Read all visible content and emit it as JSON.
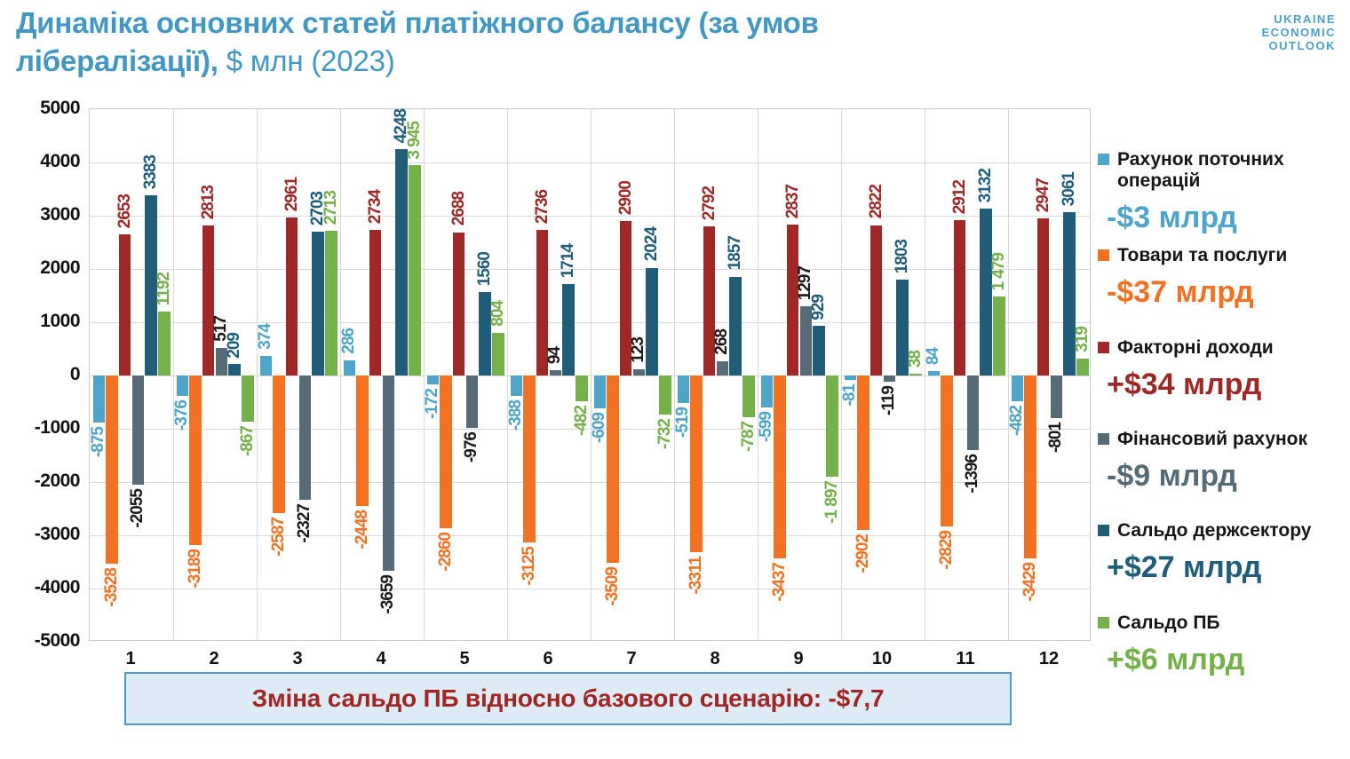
{
  "title": {
    "line1_bold": "Динаміка основних статей платіжного балансу (за умов",
    "line2_bold": "лібералізації),",
    "line2_light": " $ млн (2023)"
  },
  "logo": {
    "line1": "UKRAINE",
    "line2": "ECONOMIC",
    "line3": "OUTLOOK"
  },
  "banner": {
    "text": "Зміна сальдо ПБ відносно базового сценарію: -$7,7"
  },
  "colors": {
    "accent_blue": "#4298c2",
    "grid": "#d9d9d9",
    "axis_text": "#111111",
    "banner_bg": "#ddecf4",
    "banner_border": "#4d9cc4",
    "banner_text": "#a12525"
  },
  "chart_data": {
    "type": "bar",
    "title": "Динаміка основних статей платіжного балансу (за умов лібералізації), $ млн (2023)",
    "unit": "$ млн",
    "year": "2023",
    "categories": [
      "1",
      "2",
      "3",
      "4",
      "5",
      "6",
      "7",
      "8",
      "9",
      "10",
      "11",
      "12"
    ],
    "y_axis": {
      "min": -5000,
      "max": 5000,
      "step": 1000
    },
    "grid": true,
    "legend_position": "right",
    "series": [
      {
        "key": "current-account",
        "name": "Рахунок поточних операцій",
        "legend_value": "-$3 млрд",
        "color": "#4fa5c9",
        "label_color": "#4fa5c9",
        "values": [
          -875,
          -376,
          374,
          286,
          -172,
          -388,
          -609,
          -519,
          -599,
          -81,
          84,
          -482
        ],
        "labels": [
          "-875",
          "-376",
          "374",
          "286",
          "-172",
          "-388",
          "-609",
          "-519",
          "-599",
          "-81",
          "84",
          "-482"
        ]
      },
      {
        "key": "goods-services",
        "name": "Товари та послуги",
        "legend_value": "-$37 млрд",
        "color": "#f37122",
        "label_color": "#f37122",
        "values": [
          -3528,
          -3189,
          -2587,
          -2448,
          -2860,
          -3125,
          -3509,
          -3311,
          -3437,
          -2902,
          -2829,
          -3429
        ],
        "labels": [
          "-3528",
          "-3189",
          "-2587",
          "-2448",
          "-2860",
          "-3125",
          "-3509",
          "-3311",
          "-3437",
          "-2902",
          "-2829",
          "-3429"
        ]
      },
      {
        "key": "factor-income",
        "name": "Факторні доходи",
        "legend_value": "+$34 млрд",
        "color": "#9e2728",
        "label_color": "#9e2728",
        "values": [
          2653,
          2813,
          2961,
          2734,
          2688,
          2736,
          2900,
          2792,
          2837,
          2822,
          2912,
          2947
        ],
        "labels": [
          "2653",
          "2813",
          "2961",
          "2734",
          "2688",
          "2736",
          "2900",
          "2792",
          "2837",
          "2822",
          "2912",
          "2947"
        ]
      },
      {
        "key": "financial-account",
        "name": "Фінансовий рахунок",
        "legend_value": "-$9 млрд",
        "color": "#566b75",
        "label_color": "#1a1a1a",
        "values": [
          -2055,
          517,
          -2327,
          -3659,
          -976,
          94,
          123,
          268,
          1297,
          -119,
          -1396,
          -801
        ],
        "labels": [
          "-2055",
          "517",
          "-2327",
          "-3659",
          "-976",
          "94",
          "123",
          "268",
          "1297",
          "-119",
          "-1396",
          "-801"
        ]
      },
      {
        "key": "gov-sector-balance",
        "name": "Сальдо держсектору",
        "legend_value": "+$27 млрд",
        "color": "#1f5d79",
        "label_color": "#1f5d79",
        "values": [
          3383,
          209,
          2703,
          4248,
          1560,
          1714,
          2024,
          1857,
          929,
          1803,
          3132,
          3061
        ],
        "labels": [
          "3383",
          "209",
          "2703",
          "4248",
          "1560",
          "1714",
          "2024",
          "1857",
          "929",
          "1803",
          "3132",
          "3061"
        ]
      },
      {
        "key": "bop-balance",
        "name": "Сальдо ПБ",
        "legend_value": "+$6 млрд",
        "color": "#76b04a",
        "label_color": "#76b04a",
        "values": [
          1192,
          -867,
          2713,
          3945,
          804,
          -482,
          -732,
          -787,
          -1897,
          38,
          1479,
          319
        ],
        "labels": [
          "1192",
          "-867",
          "2713",
          "3 945",
          "804",
          "-482",
          "-732",
          "-787",
          "-1 897",
          "38",
          "1 479",
          "319"
        ]
      }
    ]
  }
}
